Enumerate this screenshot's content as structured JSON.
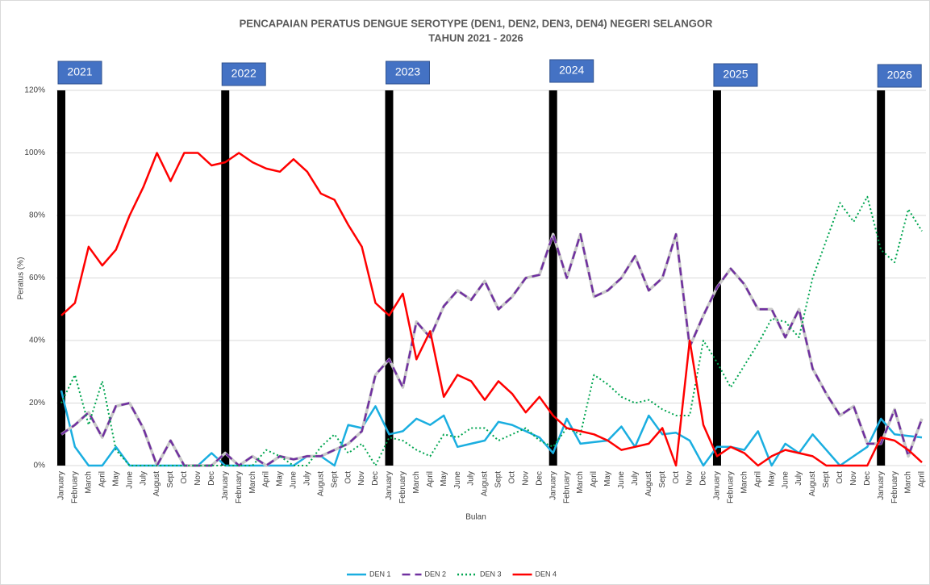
{
  "chart_data": {
    "type": "line",
    "title": "PENCAPAIAN PERATUS DENGUE SEROTYPE (DEN1, DEN2, DEN3, DEN4) NEGERI SELANGOR",
    "subtitle": "TAHUN 2021 - 2026",
    "y_label": "Peratus (%)",
    "x_label": "Bulan",
    "annotations": [
      "2021",
      "2022",
      "2023",
      "2024",
      "2025",
      "2026"
    ],
    "categories": [
      "January",
      "February",
      "March",
      "April",
      "May",
      "June",
      "July",
      "August",
      "Sept",
      "Oct",
      "Nov",
      "Dec",
      "January",
      "February",
      "March",
      "April",
      "May",
      "June",
      "July",
      "August",
      "Sept",
      "Oct",
      "Nov",
      "Dec",
      "January",
      "February",
      "March",
      "April",
      "May",
      "June",
      "July",
      "August",
      "Sept",
      "Oct",
      "Nov",
      "Dec",
      "January",
      "February",
      "March",
      "April",
      "May",
      "June",
      "July",
      "August",
      "Sept",
      "Oct",
      "Nov",
      "Dec",
      "January",
      "February",
      "March",
      "April",
      "May",
      "June",
      "July",
      "August",
      "Sept",
      "Oct",
      "Nov",
      "Dec",
      "January",
      "February",
      "March",
      "April"
    ],
    "series": [
      {
        "name": "DEN 1",
        "color": "#1aaee0",
        "dash": "solid",
        "values": [
          24,
          6,
          0,
          0,
          6,
          0,
          0,
          0,
          0,
          0,
          0,
          4,
          0,
          0,
          0,
          0,
          0,
          0,
          3,
          3,
          0,
          13,
          12,
          19,
          10,
          11,
          15,
          13,
          16,
          6,
          7,
          8,
          14,
          13,
          11,
          9,
          4,
          15,
          7,
          7.5,
          8,
          12.5,
          6,
          16,
          10,
          10.5,
          8,
          0,
          6,
          6,
          5,
          11,
          0,
          7,
          4,
          10,
          5,
          0,
          3,
          6,
          15,
          10,
          9.5,
          9
        ]
      },
      {
        "name": "DEN 2",
        "color": "#7030a0",
        "dash": "dashed",
        "values": [
          10,
          13,
          17,
          9,
          19,
          20,
          12,
          0,
          8,
          0,
          0,
          0,
          4,
          0,
          3,
          0,
          3,
          2,
          3,
          3,
          5,
          7,
          11,
          29,
          34,
          25,
          46,
          41,
          51,
          56,
          53,
          59,
          50,
          54,
          60,
          61,
          74,
          60,
          74,
          54,
          56,
          60,
          67,
          56,
          60,
          74,
          38,
          48,
          57,
          63,
          58,
          50,
          50,
          41,
          50,
          31,
          23,
          16,
          19,
          7,
          7,
          18,
          3,
          15
        ]
      },
      {
        "name": "DEN 3",
        "color": "#00a550",
        "dash": "dotted",
        "values": [
          20,
          29,
          13,
          27,
          5,
          0,
          0,
          0,
          0,
          0,
          0,
          0,
          0,
          0,
          0,
          5,
          3,
          0,
          0,
          6,
          10,
          4,
          7,
          0,
          9,
          8,
          5,
          3,
          10,
          9,
          12,
          12,
          8,
          10,
          12,
          8,
          6,
          12,
          10,
          29,
          26,
          22,
          20,
          21,
          18,
          16,
          16,
          40,
          33,
          25,
          32,
          39,
          47,
          46,
          41,
          60,
          72,
          84,
          78,
          86,
          69,
          65,
          82,
          75
        ]
      },
      {
        "name": "DEN 4",
        "color": "#ff0000",
        "dash": "solid",
        "values": [
          48,
          52,
          70,
          64,
          69,
          80,
          89,
          100,
          91,
          100,
          100,
          96,
          97,
          100,
          97,
          95,
          94,
          98,
          94,
          87,
          85,
          77,
          70,
          52,
          48,
          55,
          34,
          43,
          22,
          29,
          27,
          21,
          27,
          23,
          17,
          22,
          16,
          12,
          11,
          10,
          8,
          5,
          6,
          7,
          12,
          0,
          40,
          13,
          3,
          6,
          4,
          0,
          3,
          5,
          4,
          3,
          0,
          0,
          0,
          0,
          9,
          8,
          5,
          1
        ]
      }
    ],
    "ylim": [
      0,
      120
    ],
    "yticks": [
      {
        "value": 0,
        "label": "0%"
      },
      {
        "value": 20,
        "label": "20%"
      },
      {
        "value": 40,
        "label": "40%"
      },
      {
        "value": 60,
        "label": "60%"
      },
      {
        "value": 80,
        "label": "80%"
      },
      {
        "value": 100,
        "label": "100%"
      },
      {
        "value": 120,
        "label": "120%"
      }
    ],
    "grid": true,
    "legend": "bottom"
  }
}
